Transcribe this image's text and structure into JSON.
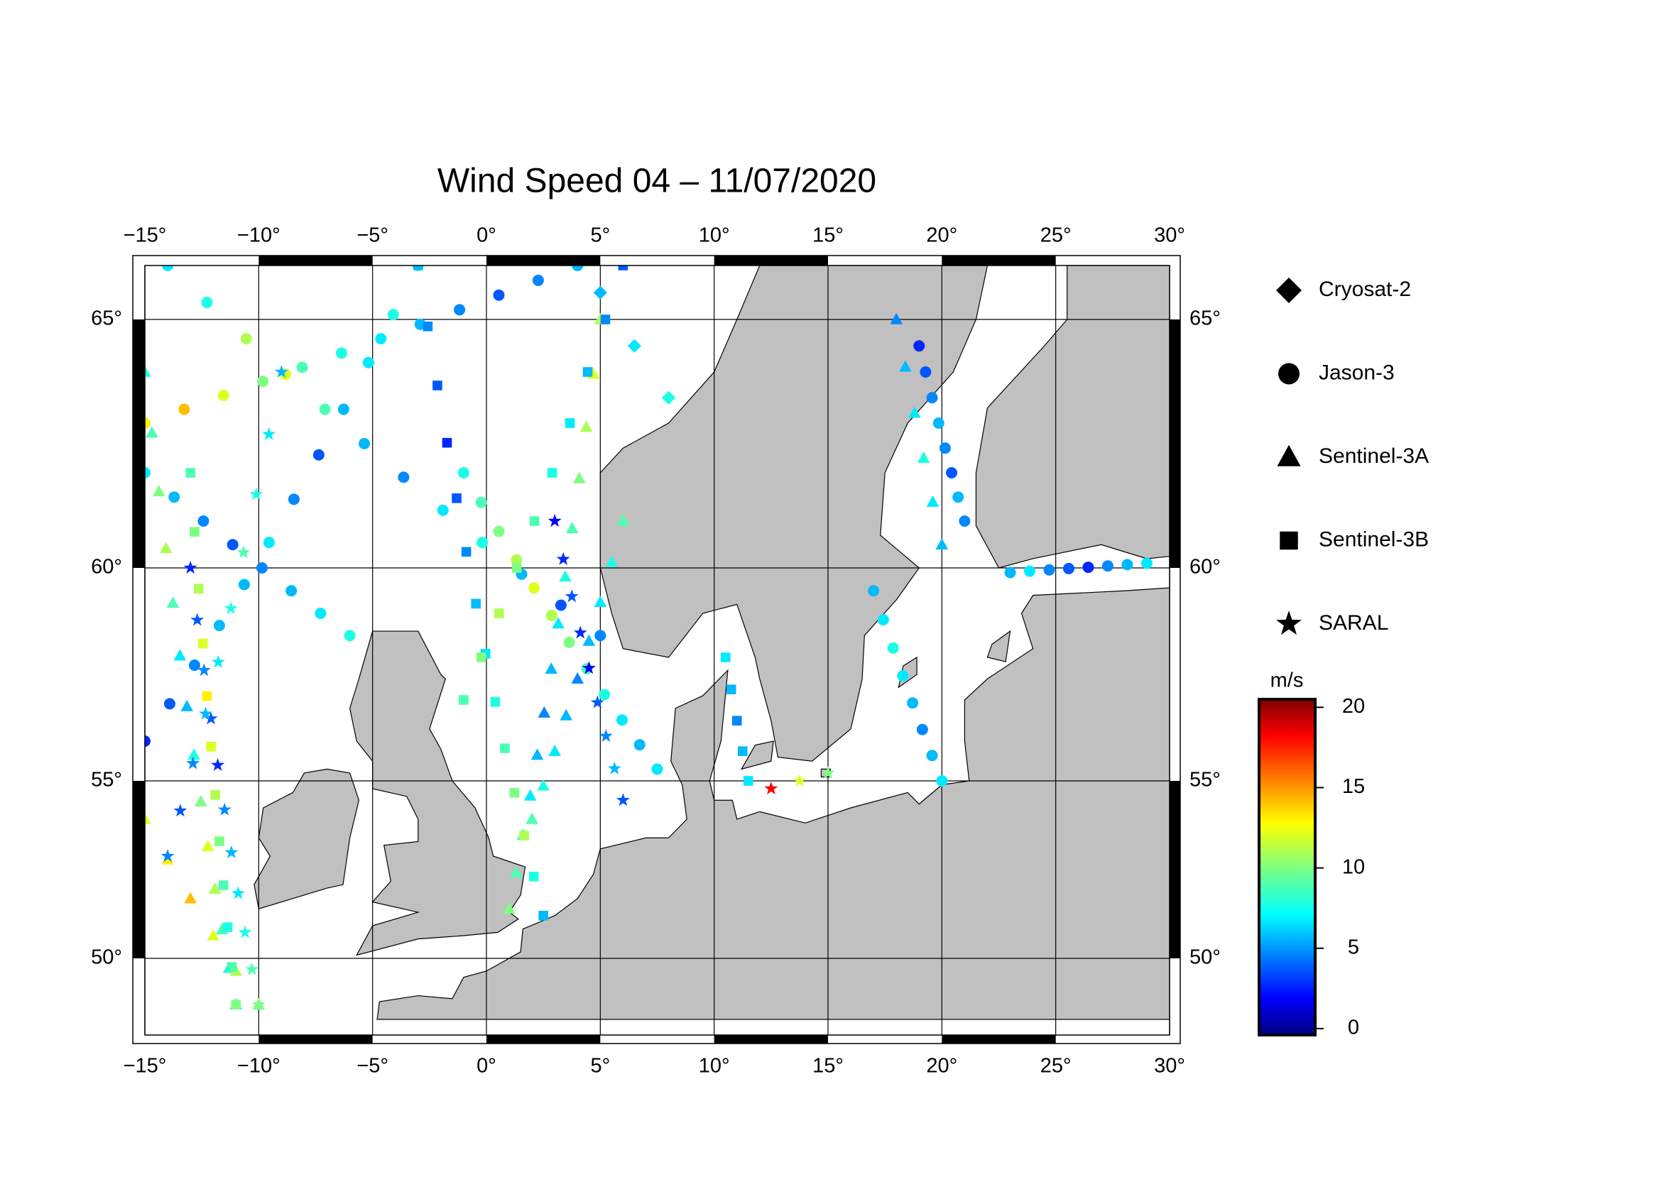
{
  "chart_data": {
    "type": "map",
    "title": "Wind Speed 04 – 11/07/2020",
    "xlim": [
      -15,
      30
    ],
    "ylim": [
      48.4,
      66
    ],
    "xticks": [
      {
        "value": -15,
        "label": "−15°"
      },
      {
        "value": -10,
        "label": "−10°"
      },
      {
        "value": -5,
        "label": "−5°"
      },
      {
        "value": 0,
        "label": "0°"
      },
      {
        "value": 5,
        "label": "5°"
      },
      {
        "value": 10,
        "label": "10°"
      },
      {
        "value": 15,
        "label": "15°"
      },
      {
        "value": 20,
        "label": "20°"
      },
      {
        "value": 25,
        "label": "25°"
      },
      {
        "value": 30,
        "label": "30°"
      }
    ],
    "yticks": [
      {
        "value": 50,
        "label": "50°"
      },
      {
        "value": 55,
        "label": "55°"
      },
      {
        "value": 60,
        "label": "60°"
      },
      {
        "value": 65,
        "label": "65°"
      }
    ],
    "grid": true,
    "colorbar": {
      "label": "m/s",
      "colormap": "jet",
      "lim": [
        -0.4,
        20.5
      ],
      "ticks": [
        0,
        5,
        10,
        15,
        20
      ]
    },
    "series": [
      {
        "name": "Cryosat-2",
        "marker": "diamond",
        "tracks": [
          {
            "start": [
              5,
              65.5
            ],
            "end": [
              8,
              63.5
            ],
            "values": [
              6,
              7,
              8
            ]
          }
        ]
      },
      {
        "name": "Jason-3",
        "marker": "circle",
        "tracks": [
          {
            "start": [
              -14,
              66
            ],
            "end": [
              5,
              58.5
            ],
            "values": [
              7,
              8,
              11,
              12,
              9,
              6,
              5,
              7,
              8,
              6,
              4,
              5
            ]
          },
          {
            "start": [
              -15,
              63
            ],
            "end": [
              4,
              66
            ],
            "values": [
              13,
              14,
              12,
              10,
              9,
              8,
              7,
              6,
              5,
              4,
              5,
              6
            ]
          },
          {
            "start": [
              -15,
              56
            ],
            "end": [
              -3,
              66
            ],
            "values": [
              3,
              4,
              5,
              6,
              6,
              7,
              5,
              4,
              6,
              7,
              8,
              9
            ]
          },
          {
            "start": [
              -15,
              62
            ],
            "end": [
              -6,
              58.5
            ],
            "values": [
              7,
              6,
              5,
              4,
              5,
              6,
              7,
              8
            ]
          },
          {
            "start": [
              17,
              59.5
            ],
            "end": [
              20,
              55
            ],
            "values": [
              6,
              7,
              8,
              7,
              6,
              5,
              6,
              7
            ]
          },
          {
            "start": [
              19,
              64.5
            ],
            "end": [
              21,
              61
            ],
            "values": [
              3,
              4,
              5,
              6,
              5,
              4,
              6,
              5
            ]
          },
          {
            "start": [
              23,
              59.9
            ],
            "end": [
              29,
              60.1
            ],
            "values": [
              6,
              7,
              5,
              4,
              3,
              5,
              6,
              7
            ]
          },
          {
            "start": [
              -1,
              62
            ],
            "end": [
              7.5,
              55.3
            ],
            "values": [
              8,
              9,
              10,
              11,
              12,
              11,
              10,
              9,
              8,
              7,
              6,
              7
            ]
          }
        ]
      },
      {
        "name": "Sentinel-3A",
        "marker": "triangle",
        "tracks": [
          {
            "start": [
              -15,
              64
            ],
            "end": [
              -11,
              48.5
            ],
            "values": [
              8,
              9,
              10,
              11,
              9,
              7,
              6,
              8,
              10,
              12,
              11,
              9,
              8,
              7
            ]
          },
          {
            "start": [
              1,
              51.5
            ],
            "end": [
              5,
              65
            ],
            "values": [
              10,
              9,
              8,
              7,
              6,
              5,
              6,
              7,
              8,
              9,
              10,
              11,
              12,
              11
            ]
          },
          {
            "start": [
              2,
              54
            ],
            "end": [
              6,
              61
            ],
            "values": [
              9,
              8,
              7,
              6,
              5,
              6,
              7,
              8,
              9
            ]
          },
          {
            "start": [
              18,
              65
            ],
            "end": [
              20,
              60.5
            ],
            "values": [
              5,
              6,
              7,
              8,
              7,
              6
            ]
          },
          {
            "start": [
              -15,
              54
            ],
            "end": [
              -10,
              48.5
            ],
            "values": [
              12,
              13,
              14,
              12,
              11,
              10
            ]
          }
        ]
      },
      {
        "name": "Sentinel-3B",
        "marker": "square",
        "tracks": [
          {
            "start": [
              -3,
              66
            ],
            "end": [
              2.5,
              51.3
            ],
            "values": [
              6,
              5,
              4,
              3,
              4,
              5,
              6,
              7,
              8,
              9,
              10,
              11,
              8,
              6
            ]
          },
          {
            "start": [
              6,
              66
            ],
            "end": [
              -1,
              57
            ],
            "values": [
              4,
              5,
              6,
              7,
              8,
              9,
              10,
              11,
              10,
              9
            ]
          },
          {
            "start": [
              -13,
              62
            ],
            "end": [
              -11,
              48.5
            ],
            "values": [
              9,
              10,
              11,
              12,
              13,
              12,
              11,
              10,
              9,
              8,
              9,
              10
            ]
          },
          {
            "start": [
              10.5,
              58
            ],
            "end": [
              11.5,
              55
            ],
            "values": [
              7,
              6,
              5,
              6,
              7
            ]
          }
        ]
      },
      {
        "name": "SARAL",
        "marker": "star",
        "tracks": [
          {
            "start": [
              -13,
              60
            ],
            "end": [
              -10,
              48.5
            ],
            "values": [
              3,
              4,
              5,
              4,
              3,
              5,
              6,
              7,
              8,
              9,
              10
            ]
          },
          {
            "start": [
              3,
              61
            ],
            "end": [
              6,
              54.5
            ],
            "values": [
              2,
              3,
              4,
              3,
              2,
              4,
              5,
              6,
              4
            ]
          },
          {
            "start": [
              -9,
              64
            ],
            "end": [
              -14,
              53
            ],
            "values": [
              6,
              7,
              8,
              9,
              8,
              7,
              6,
              5,
              4,
              5
            ]
          },
          {
            "start": [
              12.5,
              54.8
            ],
            "end": [
              15,
              55.2
            ],
            "values": [
              18,
              12,
              10
            ]
          }
        ]
      }
    ]
  }
}
